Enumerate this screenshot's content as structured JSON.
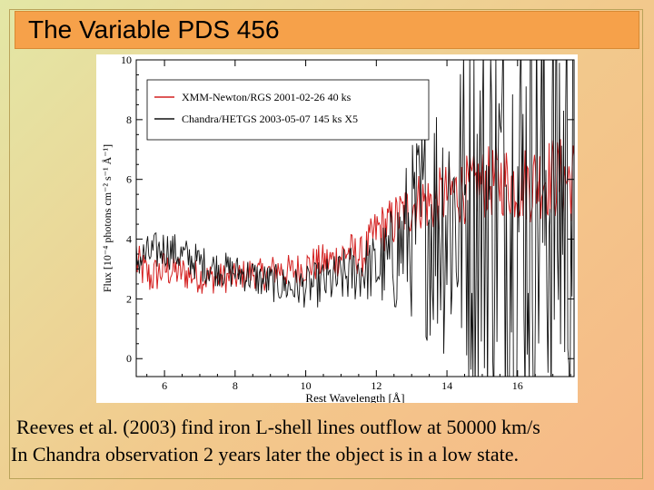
{
  "slide": {
    "title": "The Variable PDS 456",
    "caption_line1": "Reeves et al. (2003) find iron L-shell lines outflow at 50000 km/s",
    "caption_line2": "In Chandra observation 2 years later the object is in a low state."
  },
  "chart_data": {
    "type": "line",
    "title": "",
    "xlabel": "Rest Wavelength [Å]",
    "ylabel": "Flux [10⁻⁴ photons cm⁻² s⁻¹ Å⁻¹]",
    "xlim": [
      5.2,
      17.6
    ],
    "ylim": [
      -0.6,
      10
    ],
    "x_ticks": [
      6,
      8,
      10,
      12,
      14,
      16
    ],
    "y_ticks": [
      0,
      2,
      4,
      6,
      8,
      10
    ],
    "grid": false,
    "legend_position": "top-left",
    "series": [
      {
        "name": "XMM-Newton/RGS 2001-02-26  40 ks",
        "color": "#d42020",
        "points": [
          [
            5.2,
            3.2
          ],
          [
            5.6,
            2.7
          ],
          [
            6.0,
            3.0
          ],
          [
            6.4,
            2.9
          ],
          [
            6.8,
            2.8
          ],
          [
            7.2,
            2.7
          ],
          [
            7.6,
            2.7
          ],
          [
            8.0,
            2.7
          ],
          [
            8.4,
            2.9
          ],
          [
            8.8,
            2.8
          ],
          [
            9.2,
            3.0
          ],
          [
            9.6,
            2.9
          ],
          [
            10.0,
            3.1
          ],
          [
            10.4,
            3.2
          ],
          [
            10.8,
            3.3
          ],
          [
            11.2,
            3.6
          ],
          [
            11.6,
            3.4
          ],
          [
            12.0,
            4.3
          ],
          [
            12.4,
            4.5
          ],
          [
            12.8,
            4.9
          ],
          [
            13.2,
            5.3
          ],
          [
            13.6,
            5.2
          ],
          [
            14.0,
            5.5
          ],
          [
            14.4,
            5.6
          ],
          [
            14.8,
            5.8
          ],
          [
            15.2,
            5.9
          ],
          [
            15.6,
            6.0
          ],
          [
            16.0,
            5.8
          ],
          [
            16.4,
            5.9
          ],
          [
            16.8,
            6.1
          ],
          [
            17.2,
            6.0
          ],
          [
            17.6,
            6.0
          ]
        ],
        "noise": [
          [
            5.2,
            0.7
          ],
          [
            8.0,
            0.5
          ],
          [
            11.6,
            0.7
          ],
          [
            12.4,
            0.9
          ],
          [
            14.0,
            1.1
          ],
          [
            17.6,
            1.5
          ]
        ]
      },
      {
        "name": "Chandra/HETGS  2003-05-07  145 ks X5",
        "color": "#111111",
        "points": [
          [
            5.2,
            3.3
          ],
          [
            5.6,
            3.5
          ],
          [
            6.0,
            3.7
          ],
          [
            6.4,
            3.5
          ],
          [
            6.8,
            3.3
          ],
          [
            7.2,
            3.1
          ],
          [
            7.6,
            3.0
          ],
          [
            8.0,
            2.9
          ],
          [
            8.4,
            2.8
          ],
          [
            8.8,
            2.6
          ],
          [
            9.2,
            2.5
          ],
          [
            9.6,
            2.4
          ],
          [
            10.0,
            2.4
          ],
          [
            10.4,
            2.5
          ],
          [
            10.8,
            2.6
          ],
          [
            11.2,
            2.8
          ],
          [
            11.6,
            3.0
          ],
          [
            12.0,
            3.0
          ],
          [
            12.4,
            3.2
          ],
          [
            12.8,
            4.0
          ],
          [
            13.2,
            4.5
          ],
          [
            13.6,
            4.8
          ],
          [
            14.0,
            5.0
          ],
          [
            14.4,
            5.0
          ],
          [
            14.8,
            5.1
          ],
          [
            15.2,
            5.2
          ],
          [
            15.6,
            5.3
          ],
          [
            16.0,
            5.3
          ],
          [
            16.4,
            5.4
          ],
          [
            16.8,
            5.5
          ],
          [
            17.2,
            5.6
          ],
          [
            17.6,
            5.6
          ]
        ],
        "noise": [
          [
            5.2,
            0.7
          ],
          [
            8.0,
            0.6
          ],
          [
            10.0,
            0.7
          ],
          [
            12.0,
            1.2
          ],
          [
            12.8,
            2.5
          ],
          [
            13.6,
            4.5
          ],
          [
            15.0,
            7.0
          ],
          [
            17.6,
            9.0
          ]
        ]
      }
    ]
  }
}
